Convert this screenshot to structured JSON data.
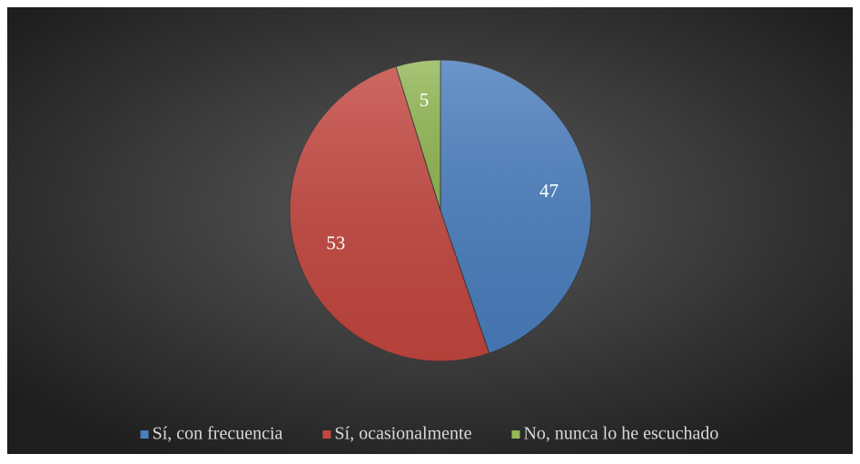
{
  "chart_data": {
    "type": "pie",
    "categories": [
      "Sí, con frecuencia",
      "Sí, ocasionalmente",
      "No, nunca lo he escuchado"
    ],
    "values": [
      47,
      53,
      5
    ],
    "colors": [
      "#4a7ebf",
      "#c4463f",
      "#94b957"
    ],
    "legend": "bottom"
  }
}
